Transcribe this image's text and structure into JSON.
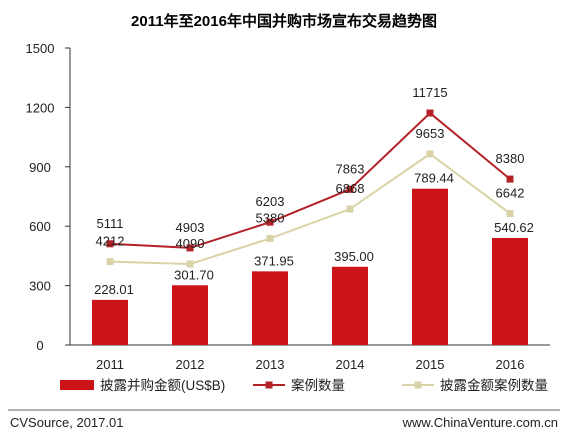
{
  "chart_data": {
    "type": "bar",
    "title": "2011年至2016年中国并购市场宣布交易趋势图",
    "categories": [
      "2011",
      "2012",
      "2013",
      "2014",
      "2015",
      "2016"
    ],
    "series": [
      {
        "name": "披露并购金额(US$B)",
        "type": "bar",
        "color": "#cc1418",
        "values": [
          228.01,
          301.7,
          371.95,
          395.0,
          789.44,
          540.62
        ],
        "labels": [
          "228.01",
          "301.70",
          "371.95",
          "395.00",
          "789.44",
          "540.62"
        ]
      },
      {
        "name": "案例数量",
        "type": "line",
        "color": "#b32025",
        "values": [
          5111,
          4903,
          6203,
          7863,
          11715,
          8380
        ],
        "labels": [
          "5111",
          "4903",
          "6203",
          "7863",
          "11715",
          "8380"
        ]
      },
      {
        "name": "披露金额案例数量",
        "type": "line",
        "color": "#d9d3a7",
        "values": [
          4212,
          4090,
          5380,
          6868,
          9653,
          6642
        ],
        "labels": [
          "4212",
          "4090",
          "5380",
          "6868",
          "9653",
          "6642"
        ]
      }
    ],
    "ylim": [
      0,
      1500
    ],
    "yticks": [
      "0",
      "300",
      "600",
      "900",
      "1200",
      "1500"
    ],
    "legend_position": "bottom",
    "grid": false
  },
  "footer": {
    "source": "CVSource, 2017.01",
    "website": "www.ChinaVenture.com.cn"
  }
}
